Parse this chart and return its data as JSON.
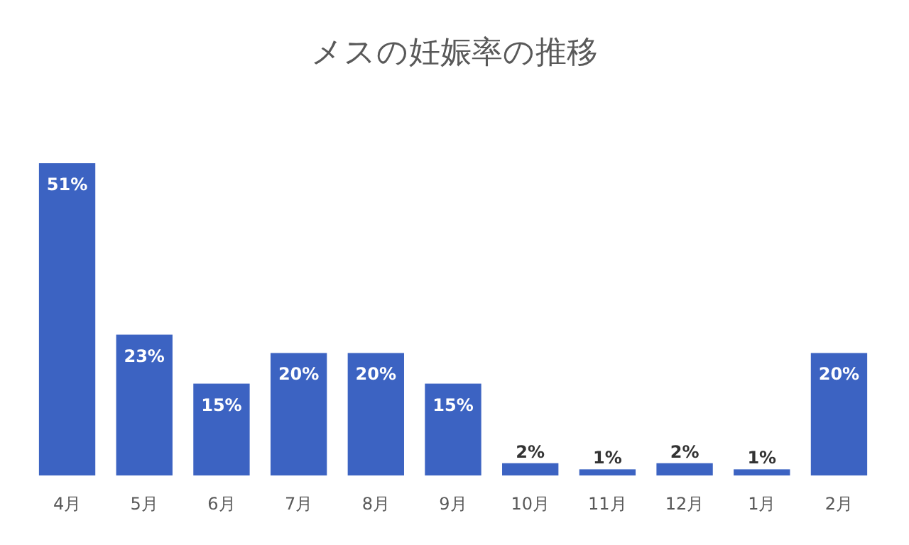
{
  "chart_data": {
    "type": "bar",
    "title": "メスの妊娠率の推移",
    "categories": [
      "4月",
      "5月",
      "6月",
      "7月",
      "8月",
      "9月",
      "10月",
      "11月",
      "12月",
      "1月",
      "2月"
    ],
    "values": [
      51,
      23,
      15,
      20,
      20,
      15,
      2,
      1,
      2,
      1,
      20
    ],
    "value_labels": [
      "51%",
      "23%",
      "15%",
      "20%",
      "20%",
      "15%",
      "2%",
      "1%",
      "2%",
      "1%",
      "20%"
    ],
    "color": "#3c63c2",
    "grid": false
  }
}
